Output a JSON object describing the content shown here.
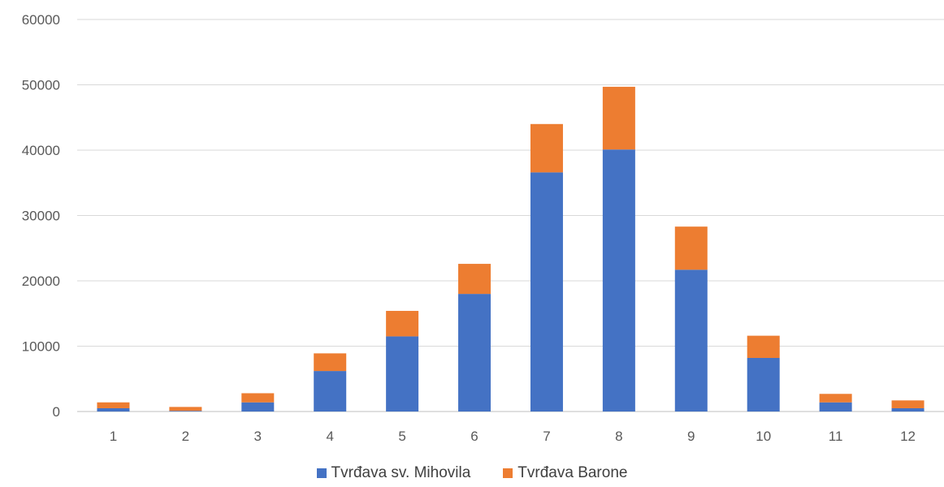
{
  "chart_data": {
    "type": "bar",
    "stacked": true,
    "categories": [
      "1",
      "2",
      "3",
      "4",
      "5",
      "6",
      "7",
      "8",
      "9",
      "10",
      "11",
      "12"
    ],
    "series": [
      {
        "name": "Tvrđava sv. Mihovila",
        "color": "#4472C4",
        "values": [
          500,
          100,
          1400,
          6200,
          11500,
          18000,
          36600,
          40100,
          21700,
          8200,
          1400,
          500
        ]
      },
      {
        "name": "Tvrđava Barone",
        "color": "#ED7D31",
        "values": [
          900,
          600,
          1400,
          2700,
          3900,
          4600,
          7400,
          9600,
          6600,
          3400,
          1300,
          1200
        ]
      }
    ],
    "ylim": [
      0,
      60000
    ],
    "yticks": [
      0,
      10000,
      20000,
      30000,
      40000,
      50000,
      60000
    ],
    "grid": true,
    "legend": "bottom"
  }
}
